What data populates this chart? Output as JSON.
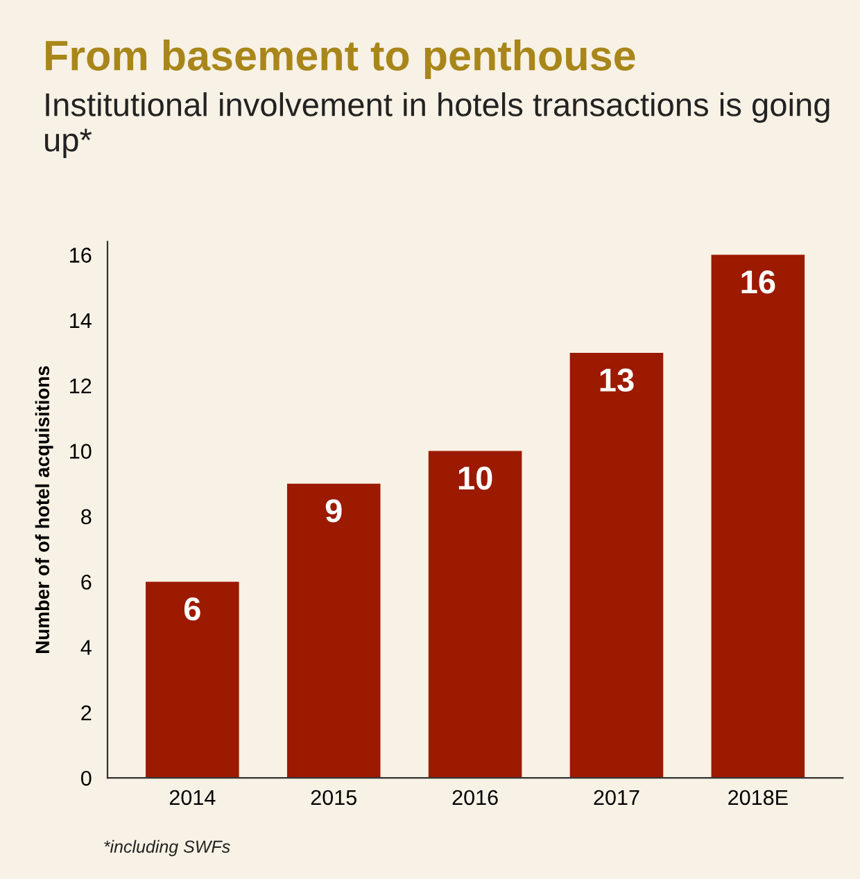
{
  "chart_data": {
    "type": "bar",
    "title": "From basement to penthouse",
    "subtitle": "Institutional involvement in hotels transactions is going up*",
    "ylabel": "Number of of hotel acquisitions",
    "categories": [
      "2014",
      "2015",
      "2016",
      "2017",
      "2018E"
    ],
    "values": [
      6,
      9,
      10,
      13,
      16
    ],
    "color": "#9c1a00",
    "ylim": [
      0,
      16.4
    ],
    "yticks": [
      0,
      2,
      4,
      6,
      8,
      10,
      12,
      14,
      16
    ],
    "grid": false,
    "data_labels": true,
    "annotations": [
      "*including SWFs"
    ]
  }
}
